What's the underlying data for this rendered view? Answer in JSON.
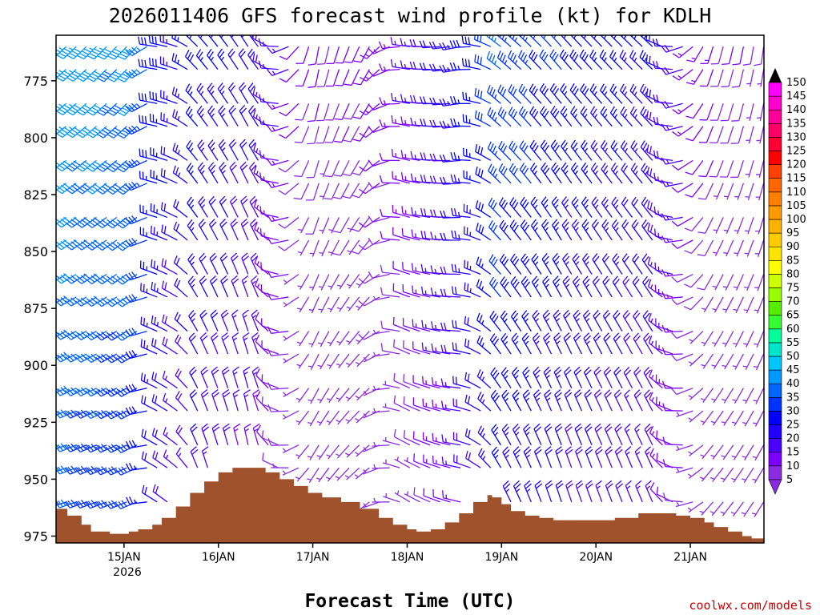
{
  "chart_data": {
    "type": "wind-profile",
    "title": "2026011406 GFS forecast wind profile (kt) for KDLH",
    "xlabel": "Forecast Time (UTC)",
    "credit": "coolwx.com/models",
    "credit_color": "#cc0000",
    "ylim": [
      978,
      755
    ],
    "y_ticks": [
      "775",
      "800",
      "825",
      "850",
      "875",
      "900",
      "925",
      "950",
      "975"
    ],
    "x_range": [
      -0.72,
      6.78
    ],
    "x_ticks": [
      {
        "x": 0,
        "label": "15JAN"
      },
      {
        "x": 1,
        "label": "16JAN"
      },
      {
        "x": 2,
        "label": "17JAN"
      },
      {
        "x": 3,
        "label": "18JAN"
      },
      {
        "x": 4,
        "label": "19JAN"
      },
      {
        "x": 5,
        "label": "20JAN"
      },
      {
        "x": 6,
        "label": "21JAN"
      }
    ],
    "year_label": "2026",
    "colorbar": {
      "levels": [
        "5",
        "10",
        "15",
        "20",
        "25",
        "30",
        "35",
        "40",
        "45",
        "50",
        "55",
        "60",
        "65",
        "70",
        "75",
        "80",
        "85",
        "90",
        "95",
        "100",
        "105",
        "110",
        "115",
        "120",
        "125",
        "130",
        "135",
        "140",
        "145",
        "150"
      ],
      "colors": [
        "#8a2be2",
        "#7b00ff",
        "#4b00ff",
        "#2200ff",
        "#0000ff",
        "#0033ff",
        "#0066ff",
        "#0099ff",
        "#00c6ff",
        "#00e5cc",
        "#00ff99",
        "#33ff33",
        "#55ee00",
        "#99ff00",
        "#ccff00",
        "#ffff00",
        "#ffe400",
        "#ffcc00",
        "#ffb300",
        "#ff9900",
        "#ff8000",
        "#ff6600",
        "#ff4000",
        "#ff0000",
        "#ff0033",
        "#ff0066",
        "#ff0099",
        "#ff00cc",
        "#ff00ff"
      ]
    },
    "terrain": {
      "color": "#a0522d",
      "x": [
        -0.72,
        -0.6,
        -0.45,
        -0.35,
        -0.15,
        0.05,
        0.15,
        0.3,
        0.4,
        0.55,
        0.7,
        0.85,
        1.0,
        1.15,
        1.3,
        1.5,
        1.65,
        1.8,
        1.95,
        2.1,
        2.3,
        2.5,
        2.7,
        2.85,
        3.0,
        3.1,
        3.25,
        3.4,
        3.55,
        3.7,
        3.85,
        3.9,
        4.0,
        4.1,
        4.25,
        4.4,
        4.55,
        4.8,
        5.0,
        5.2,
        5.45,
        5.7,
        5.85,
        6.0,
        6.15,
        6.25,
        6.4,
        6.55,
        6.65,
        6.78
      ],
      "y": [
        963,
        966,
        970,
        973,
        974,
        973,
        972,
        970,
        967,
        962,
        956,
        951,
        947,
        945,
        945,
        947,
        950,
        953,
        956,
        958,
        960,
        963,
        967,
        970,
        972,
        973,
        972,
        969,
        965,
        960,
        957,
        958,
        961,
        964,
        966,
        967,
        968,
        968,
        968,
        967,
        965,
        965,
        966,
        967,
        969,
        971,
        973,
        975,
        976,
        976
      ]
    },
    "barb_columns": {
      "levels": [
        760,
        770,
        785,
        795,
        810,
        820,
        835,
        845,
        860,
        870,
        885,
        895,
        910,
        920,
        935,
        945,
        960
      ],
      "times_start": -0.72,
      "times_step": 0.1071,
      "times_count": 71,
      "phases": [
        {
          "t": -0.72,
          "dir": 240,
          "spd": 45
        },
        {
          "t": 0.2,
          "dir": 235,
          "spd": 40
        },
        {
          "t": 0.35,
          "dir": 290,
          "spd": 30
        },
        {
          "t": 0.6,
          "dir": 300,
          "spd": 25
        },
        {
          "t": 0.8,
          "dir": 330,
          "spd": 28
        },
        {
          "t": 1.4,
          "dir": 340,
          "spd": 22
        },
        {
          "t": 2.0,
          "dir": 200,
          "spd": 10
        },
        {
          "t": 2.6,
          "dir": 220,
          "spd": 12
        },
        {
          "t": 3.0,
          "dir": 290,
          "spd": 15
        },
        {
          "t": 3.6,
          "dir": 270,
          "spd": 25
        },
        {
          "t": 4.0,
          "dir": 320,
          "spd": 35
        },
        {
          "t": 4.6,
          "dir": 330,
          "spd": 30
        },
        {
          "t": 5.6,
          "dir": 325,
          "spd": 25
        },
        {
          "t": 6.2,
          "dir": 210,
          "spd": 12
        },
        {
          "t": 6.78,
          "dir": 200,
          "spd": 8
        }
      ]
    }
  }
}
